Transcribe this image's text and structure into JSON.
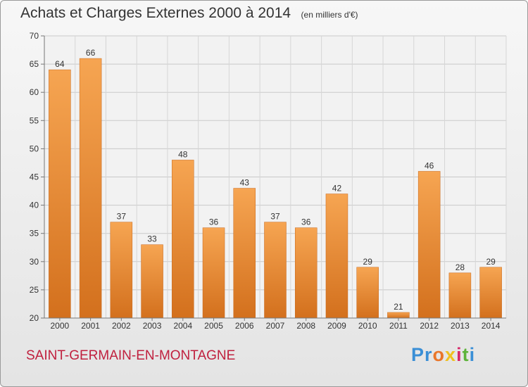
{
  "title": "Achats et Charges Externes 2000 à 2014",
  "unit_note": "(en milliers d'€)",
  "commune": "SAINT-GERMAIN-EN-MONTAGNE",
  "logo": {
    "letters": [
      "P",
      "r",
      "o",
      "x",
      "i",
      "t",
      "i"
    ],
    "colors": [
      "#3a8fd6",
      "#3a8fd6",
      "#e9762a",
      "#f0c020",
      "#d6286a",
      "#5db33a",
      "#3a8fd6"
    ]
  },
  "chart_data": {
    "type": "bar",
    "title": "Achats et Charges Externes 2000 à 2014",
    "xlabel": "",
    "ylabel": "",
    "categories": [
      "2000",
      "2001",
      "2002",
      "2003",
      "2004",
      "2005",
      "2006",
      "2007",
      "2008",
      "2009",
      "2010",
      "2011",
      "2012",
      "2013",
      "2014"
    ],
    "values": [
      64,
      66,
      37,
      33,
      48,
      36,
      43,
      37,
      36,
      42,
      29,
      21,
      46,
      28,
      29
    ],
    "ylim": [
      20,
      70
    ],
    "yticks": [
      20,
      25,
      30,
      35,
      40,
      45,
      50,
      55,
      60,
      65,
      70
    ],
    "grid": true,
    "bar_color": "#f0913a"
  }
}
